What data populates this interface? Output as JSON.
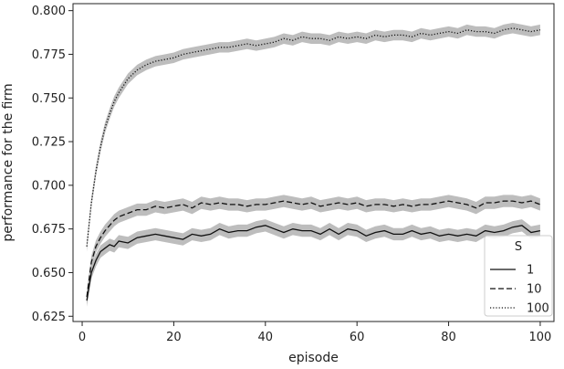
{
  "chart_data": {
    "type": "line",
    "xlabel": "episode",
    "ylabel": "performance for the firm",
    "xlim": [
      -2,
      103
    ],
    "ylim": [
      0.622,
      0.804
    ],
    "xticks": [
      0,
      20,
      40,
      60,
      80,
      100
    ],
    "xtick_labels": [
      "0",
      "20",
      "40",
      "60",
      "80",
      "100"
    ],
    "yticks": [
      0.625,
      0.65,
      0.675,
      0.7,
      0.725,
      0.75,
      0.775,
      0.8
    ],
    "ytick_labels": [
      "0.625",
      "0.650",
      "0.675",
      "0.700",
      "0.725",
      "0.750",
      "0.775",
      "0.800"
    ],
    "grid": false,
    "band": "confidence interval (grey shading)",
    "legend": {
      "title": "S",
      "placement": "lower-right"
    },
    "series": [
      {
        "name": "1",
        "style": "solid",
        "band_halfwidth": 0.0035,
        "points": [
          [
            1,
            0.634
          ],
          [
            2,
            0.65
          ],
          [
            3,
            0.657
          ],
          [
            4,
            0.662
          ],
          [
            5,
            0.664
          ],
          [
            6,
            0.666
          ],
          [
            7,
            0.665
          ],
          [
            8,
            0.668
          ],
          [
            10,
            0.667
          ],
          [
            12,
            0.67
          ],
          [
            14,
            0.671
          ],
          [
            16,
            0.672
          ],
          [
            18,
            0.671
          ],
          [
            20,
            0.67
          ],
          [
            22,
            0.669
          ],
          [
            24,
            0.672
          ],
          [
            26,
            0.671
          ],
          [
            28,
            0.672
          ],
          [
            30,
            0.675
          ],
          [
            32,
            0.673
          ],
          [
            34,
            0.674
          ],
          [
            36,
            0.674
          ],
          [
            38,
            0.676
          ],
          [
            40,
            0.677
          ],
          [
            42,
            0.675
          ],
          [
            44,
            0.673
          ],
          [
            46,
            0.675
          ],
          [
            48,
            0.674
          ],
          [
            50,
            0.674
          ],
          [
            52,
            0.672
          ],
          [
            54,
            0.675
          ],
          [
            56,
            0.672
          ],
          [
            58,
            0.675
          ],
          [
            60,
            0.674
          ],
          [
            62,
            0.671
          ],
          [
            64,
            0.673
          ],
          [
            66,
            0.674
          ],
          [
            68,
            0.672
          ],
          [
            70,
            0.672
          ],
          [
            72,
            0.674
          ],
          [
            74,
            0.672
          ],
          [
            76,
            0.673
          ],
          [
            78,
            0.671
          ],
          [
            80,
            0.672
          ],
          [
            82,
            0.671
          ],
          [
            84,
            0.672
          ],
          [
            86,
            0.671
          ],
          [
            88,
            0.674
          ],
          [
            90,
            0.673
          ],
          [
            92,
            0.674
          ],
          [
            94,
            0.676
          ],
          [
            96,
            0.677
          ],
          [
            98,
            0.673
          ],
          [
            100,
            0.674
          ]
        ]
      },
      {
        "name": "10",
        "style": "dashed",
        "band_halfwidth": 0.0035,
        "points": [
          [
            1,
            0.636
          ],
          [
            2,
            0.656
          ],
          [
            3,
            0.665
          ],
          [
            4,
            0.67
          ],
          [
            5,
            0.674
          ],
          [
            6,
            0.677
          ],
          [
            7,
            0.68
          ],
          [
            8,
            0.682
          ],
          [
            10,
            0.684
          ],
          [
            12,
            0.686
          ],
          [
            14,
            0.686
          ],
          [
            16,
            0.688
          ],
          [
            18,
            0.687
          ],
          [
            20,
            0.688
          ],
          [
            22,
            0.689
          ],
          [
            24,
            0.687
          ],
          [
            26,
            0.69
          ],
          [
            28,
            0.689
          ],
          [
            30,
            0.69
          ],
          [
            32,
            0.689
          ],
          [
            34,
            0.689
          ],
          [
            36,
            0.688
          ],
          [
            38,
            0.689
          ],
          [
            40,
            0.689
          ],
          [
            42,
            0.69
          ],
          [
            44,
            0.691
          ],
          [
            46,
            0.69
          ],
          [
            48,
            0.689
          ],
          [
            50,
            0.69
          ],
          [
            52,
            0.688
          ],
          [
            54,
            0.689
          ],
          [
            56,
            0.69
          ],
          [
            58,
            0.689
          ],
          [
            60,
            0.69
          ],
          [
            62,
            0.688
          ],
          [
            64,
            0.689
          ],
          [
            66,
            0.689
          ],
          [
            68,
            0.688
          ],
          [
            70,
            0.689
          ],
          [
            72,
            0.688
          ],
          [
            74,
            0.689
          ],
          [
            76,
            0.689
          ],
          [
            78,
            0.69
          ],
          [
            80,
            0.691
          ],
          [
            82,
            0.69
          ],
          [
            84,
            0.689
          ],
          [
            86,
            0.687
          ],
          [
            88,
            0.69
          ],
          [
            90,
            0.69
          ],
          [
            92,
            0.691
          ],
          [
            94,
            0.691
          ],
          [
            96,
            0.69
          ],
          [
            98,
            0.691
          ],
          [
            100,
            0.689
          ]
        ]
      },
      {
        "name": "100",
        "style": "dotted",
        "band_halfwidth": 0.003,
        "points": [
          [
            1,
            0.665
          ],
          [
            2,
            0.69
          ],
          [
            3,
            0.708
          ],
          [
            4,
            0.722
          ],
          [
            5,
            0.733
          ],
          [
            6,
            0.741
          ],
          [
            7,
            0.748
          ],
          [
            8,
            0.753
          ],
          [
            9,
            0.757
          ],
          [
            10,
            0.761
          ],
          [
            12,
            0.766
          ],
          [
            14,
            0.769
          ],
          [
            16,
            0.771
          ],
          [
            18,
            0.772
          ],
          [
            20,
            0.773
          ],
          [
            22,
            0.775
          ],
          [
            24,
            0.776
          ],
          [
            26,
            0.777
          ],
          [
            28,
            0.778
          ],
          [
            30,
            0.779
          ],
          [
            32,
            0.779
          ],
          [
            34,
            0.78
          ],
          [
            36,
            0.781
          ],
          [
            38,
            0.78
          ],
          [
            40,
            0.781
          ],
          [
            42,
            0.782
          ],
          [
            44,
            0.784
          ],
          [
            46,
            0.783
          ],
          [
            48,
            0.785
          ],
          [
            50,
            0.784
          ],
          [
            52,
            0.784
          ],
          [
            54,
            0.783
          ],
          [
            56,
            0.785
          ],
          [
            58,
            0.784
          ],
          [
            60,
            0.785
          ],
          [
            62,
            0.784
          ],
          [
            64,
            0.786
          ],
          [
            66,
            0.785
          ],
          [
            68,
            0.786
          ],
          [
            70,
            0.786
          ],
          [
            72,
            0.785
          ],
          [
            74,
            0.787
          ],
          [
            76,
            0.786
          ],
          [
            78,
            0.787
          ],
          [
            80,
            0.788
          ],
          [
            82,
            0.787
          ],
          [
            84,
            0.789
          ],
          [
            86,
            0.788
          ],
          [
            88,
            0.788
          ],
          [
            90,
            0.787
          ],
          [
            92,
            0.789
          ],
          [
            94,
            0.79
          ],
          [
            96,
            0.789
          ],
          [
            98,
            0.788
          ],
          [
            100,
            0.789
          ]
        ]
      }
    ]
  }
}
